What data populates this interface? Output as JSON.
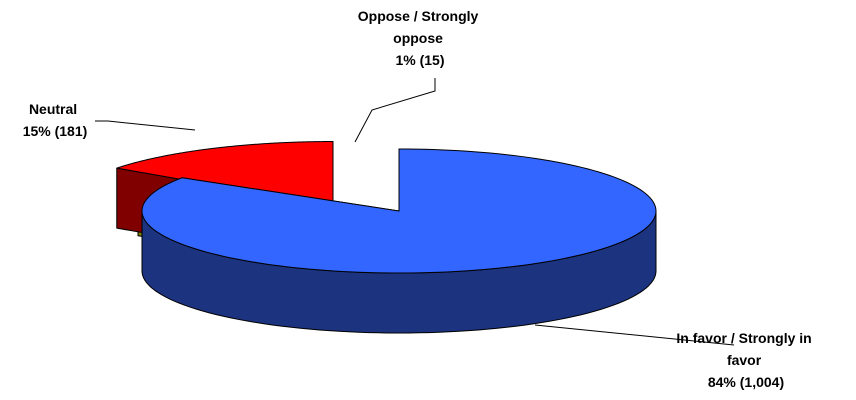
{
  "chart_data": {
    "type": "pie",
    "title": "",
    "style": "3d-exploded",
    "slices": [
      {
        "name": "In favor / Strongly in favor",
        "label_lines": [
          "In favor / Strongly in",
          "favor",
          "84% (1,004)"
        ],
        "percent": 84,
        "count": 1004,
        "color": "#3366FF",
        "side_color": "#1C3380"
      },
      {
        "name": "Oppose / Strongly oppose",
        "label_lines": [
          "Oppose / Strongly",
          "oppose",
          "1% (15)"
        ],
        "percent": 1,
        "count": 15,
        "color": "#FFFF00",
        "side_color": "#808000"
      },
      {
        "name": "Neutral",
        "label_lines": [
          "Neutral",
          "15% (181)"
        ],
        "percent": 15,
        "count": 181,
        "color": "#FF0000",
        "side_color": "#800000"
      }
    ],
    "legend": "none",
    "outline_color": "#000000"
  }
}
